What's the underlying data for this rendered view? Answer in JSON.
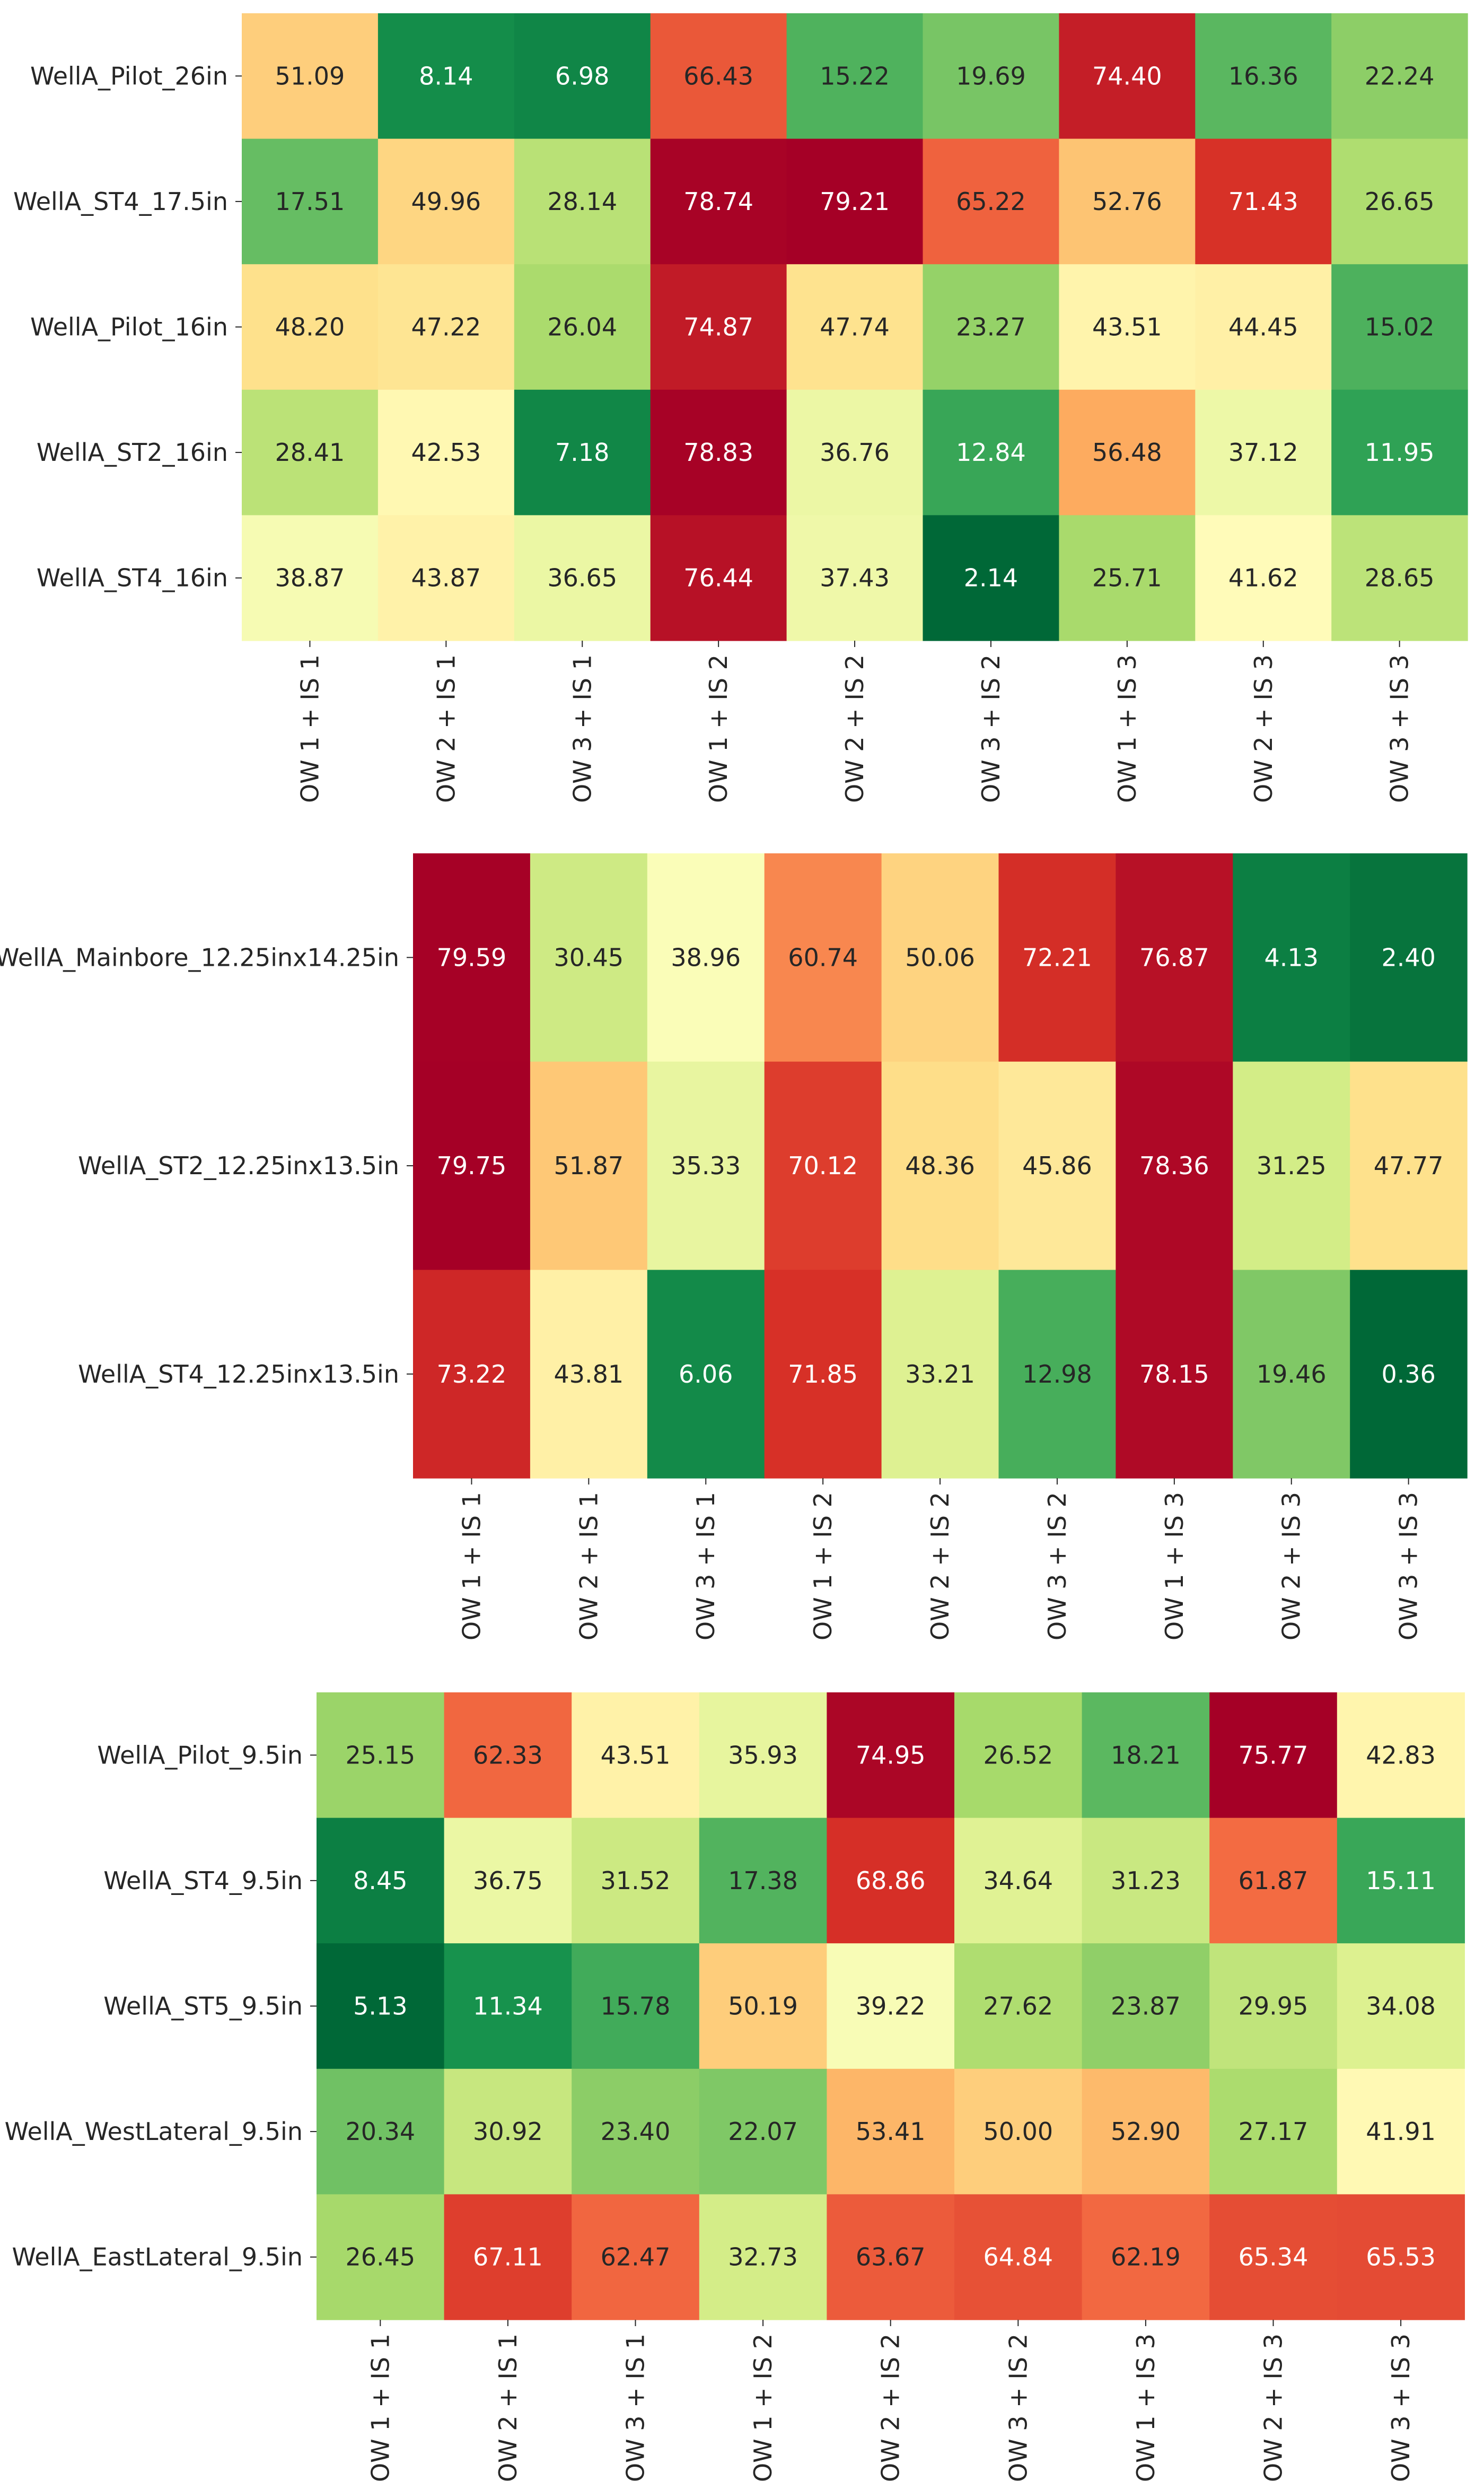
{
  "colors": {
    "colormap": "RdYlGn_r",
    "text_light": "#ffffff",
    "text_dark": "#262626"
  },
  "chart_data": [
    {
      "type": "heatmap",
      "title": "",
      "columns": [
        "OW 1 + IS 1",
        "OW 2 + IS 1",
        "OW 3 + IS 1",
        "OW 1 + IS 2",
        "OW 2 + IS 2",
        "OW 3 + IS 2",
        "OW 1 + IS 3",
        "OW 2 + IS 3",
        "OW 3 + IS 3"
      ],
      "rows": [
        "WellA_Pilot_26in",
        "WellA_ST4_17.5in",
        "WellA_Pilot_16in",
        "WellA_ST2_16in",
        "WellA_ST4_16in"
      ],
      "values": [
        [
          51.09,
          8.14,
          6.98,
          66.43,
          15.22,
          19.69,
          74.4,
          16.36,
          22.24
        ],
        [
          17.51,
          49.96,
          28.14,
          78.74,
          79.21,
          65.22,
          52.76,
          71.43,
          26.65
        ],
        [
          48.2,
          47.22,
          26.04,
          74.87,
          47.74,
          23.27,
          43.51,
          44.45,
          15.02
        ],
        [
          28.41,
          42.53,
          7.18,
          78.83,
          36.76,
          12.84,
          56.48,
          37.12,
          11.95
        ],
        [
          38.87,
          43.87,
          36.65,
          76.44,
          37.43,
          2.14,
          25.71,
          41.62,
          28.65
        ]
      ],
      "labels": [
        [
          "51.09",
          "8.14",
          "6.98",
          "66.43",
          "15.22",
          "19.69",
          "74.40",
          "16.36",
          "22.24"
        ],
        [
          "17.51",
          "49.96",
          "28.14",
          "78.74",
          "79.21",
          "65.22",
          "52.76",
          "71.43",
          "26.65"
        ],
        [
          "48.20",
          "47.22",
          "26.04",
          "74.87",
          "47.74",
          "23.27",
          "43.51",
          "44.45",
          "15.02"
        ],
        [
          "28.41",
          "42.53",
          "7.18",
          "78.83",
          "36.76",
          "12.84",
          "56.48",
          "37.12",
          "11.95"
        ],
        [
          "38.87",
          "43.87",
          "36.65",
          "76.44",
          "37.43",
          "2.14",
          "25.71",
          "41.62",
          "28.65"
        ]
      ],
      "colorbar": false
    },
    {
      "type": "heatmap",
      "title": "",
      "columns": [
        "OW 1 + IS 1",
        "OW 2 + IS 1",
        "OW 3 + IS 1",
        "OW 1 + IS 2",
        "OW 2 + IS 2",
        "OW 3 + IS 2",
        "OW 1 + IS 3",
        "OW 2 + IS 3",
        "OW 3 + IS 3"
      ],
      "rows": [
        "WellA_Mainbore_12.25inx14.25in",
        "WellA_ST2_12.25inx13.5in",
        "WellA_ST4_12.25inx13.5in"
      ],
      "values": [
        [
          79.59,
          30.45,
          38.96,
          60.74,
          50.06,
          72.21,
          76.87,
          4.13,
          2.4
        ],
        [
          79.75,
          51.87,
          35.33,
          70.12,
          48.36,
          45.86,
          78.36,
          31.25,
          47.77
        ],
        [
          73.22,
          43.81,
          6.06,
          71.85,
          33.21,
          12.98,
          78.15,
          19.46,
          0.36
        ]
      ],
      "labels": [
        [
          "79.59",
          "30.45",
          "38.96",
          "60.74",
          "50.06",
          "72.21",
          "76.87",
          "4.13",
          "2.40"
        ],
        [
          "79.75",
          "51.87",
          "35.33",
          "70.12",
          "48.36",
          "45.86",
          "78.36",
          "31.25",
          "47.77"
        ],
        [
          "73.22",
          "43.81",
          "6.06",
          "71.85",
          "33.21",
          "12.98",
          "78.15",
          "19.46",
          "0.36"
        ]
      ],
      "colorbar": false
    },
    {
      "type": "heatmap",
      "title": "",
      "columns": [
        "OW 1 + IS 1",
        "OW 2 + IS 1",
        "OW 3 + IS 1",
        "OW 1 + IS 2",
        "OW 2 + IS 2",
        "OW 3 + IS 2",
        "OW 1 + IS 3",
        "OW 2 + IS 3",
        "OW 3 + IS 3"
      ],
      "rows": [
        "WellA_Pilot_9.5in",
        "WellA_ST4_9.5in",
        "WellA_ST5_9.5in",
        "WellA_WestLateral_9.5in",
        "WellA_EastLateral_9.5in"
      ],
      "values": [
        [
          25.15,
          62.33,
          43.51,
          35.93,
          74.95,
          26.52,
          18.21,
          75.77,
          42.83
        ],
        [
          8.45,
          36.75,
          31.52,
          17.38,
          68.86,
          34.64,
          31.23,
          61.87,
          15.11
        ],
        [
          5.13,
          11.34,
          15.78,
          50.19,
          39.22,
          27.62,
          23.87,
          29.95,
          34.08
        ],
        [
          20.34,
          30.92,
          23.4,
          22.07,
          53.41,
          50.0,
          52.9,
          27.17,
          41.91
        ],
        [
          26.45,
          67.11,
          62.47,
          32.73,
          63.67,
          64.84,
          62.19,
          65.34,
          65.53
        ]
      ],
      "labels": [
        [
          "25.15",
          "62.33",
          "43.51",
          "35.93",
          "74.95",
          "26.52",
          "18.21",
          "75.77",
          "42.83"
        ],
        [
          "8.45",
          "36.75",
          "31.52",
          "17.38",
          "68.86",
          "34.64",
          "31.23",
          "61.87",
          "15.11"
        ],
        [
          "5.13",
          "11.34",
          "15.78",
          "50.19",
          "39.22",
          "27.62",
          "23.87",
          "29.95",
          "34.08"
        ],
        [
          "20.34",
          "30.92",
          "23.40",
          "22.07",
          "53.41",
          "50.00",
          "52.90",
          "27.17",
          "41.91"
        ],
        [
          "26.45",
          "67.11",
          "62.47",
          "32.73",
          "63.67",
          "64.84",
          "62.19",
          "65.34",
          "65.53"
        ]
      ],
      "colorbar": false
    }
  ]
}
